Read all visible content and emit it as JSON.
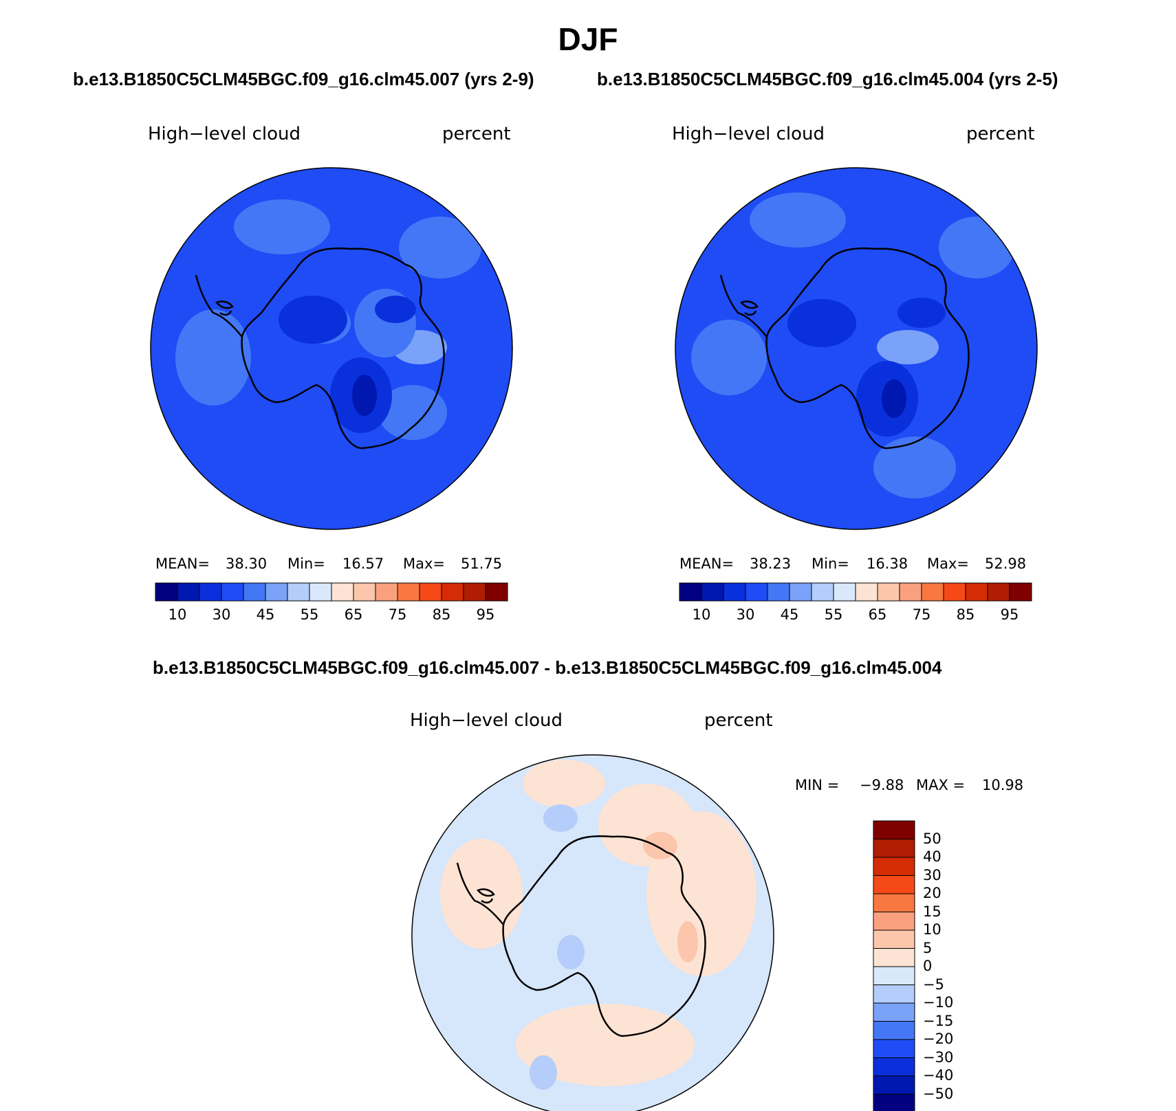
{
  "title": "DJF",
  "panels": [
    {
      "case_label": "b.e13.B1850C5CLM45BGC.f09_g16.clm45.007 (yrs 2-9)",
      "variable": "High−level cloud",
      "units": "percent",
      "stats": {
        "mean_label": "MEAN=",
        "mean": "38.30",
        "min_label": "Min=",
        "min": "16.57",
        "max_label": "Max=",
        "max": "51.75"
      },
      "base_color": "#1f4cf5"
    },
    {
      "case_label": "b.e13.B1850C5CLM45BGC.f09_g16.clm45.004 (yrs 2-5)",
      "variable": "High−level cloud",
      "units": "percent",
      "stats": {
        "mean_label": "MEAN=",
        "mean": "38.23",
        "min_label": "Min=",
        "min": "16.38",
        "max_label": "Max=",
        "max": "52.98"
      },
      "base_color": "#1f4cf5"
    }
  ],
  "diff_panel": {
    "case_label": "b.e13.B1850C5CLM45BGC.f09_g16.clm45.007 - b.e13.B1850C5CLM45BGC.f09_g16.clm45.004",
    "variable": "High−level cloud",
    "units": "percent",
    "stats": {
      "min_label": "MIN =",
      "min": "−9.88",
      "max_label": "MAX =",
      "max": "10.98"
    },
    "base_color": "#d6e6fb"
  },
  "abs_colorbar": {
    "colors": [
      "#000080",
      "#0018b0",
      "#0a30dc",
      "#1f4cf5",
      "#4477f6",
      "#7aa2f8",
      "#b4cdfa",
      "#d9e8fb",
      "#fde3d3",
      "#fbc6ac",
      "#f9a17e",
      "#f97740",
      "#f54a17",
      "#d42c04",
      "#b01d02",
      "#800000"
    ],
    "tick_labels": [
      "10",
      "30",
      "45",
      "55",
      "65",
      "75",
      "85",
      "95"
    ],
    "tick_boundaries": [
      1,
      3,
      5,
      7,
      9,
      11,
      13,
      15
    ]
  },
  "diff_colorbar": {
    "colors_top_to_bottom": [
      "#800000",
      "#b01d02",
      "#d42c04",
      "#f54a17",
      "#f97740",
      "#f9a17e",
      "#fbc6ac",
      "#fde3d3",
      "#d9e8fb",
      "#b4cdfa",
      "#7aa2f8",
      "#4477f6",
      "#1f4cf5",
      "#0a30dc",
      "#0018b0",
      "#000080"
    ],
    "tick_labels": [
      "50",
      "40",
      "30",
      "20",
      "15",
      "10",
      "5",
      "0",
      "−5",
      "−10",
      "−15",
      "−20",
      "−30",
      "−40",
      "−50"
    ]
  },
  "icons": [
    "antarctica-coastline-icon"
  ]
}
